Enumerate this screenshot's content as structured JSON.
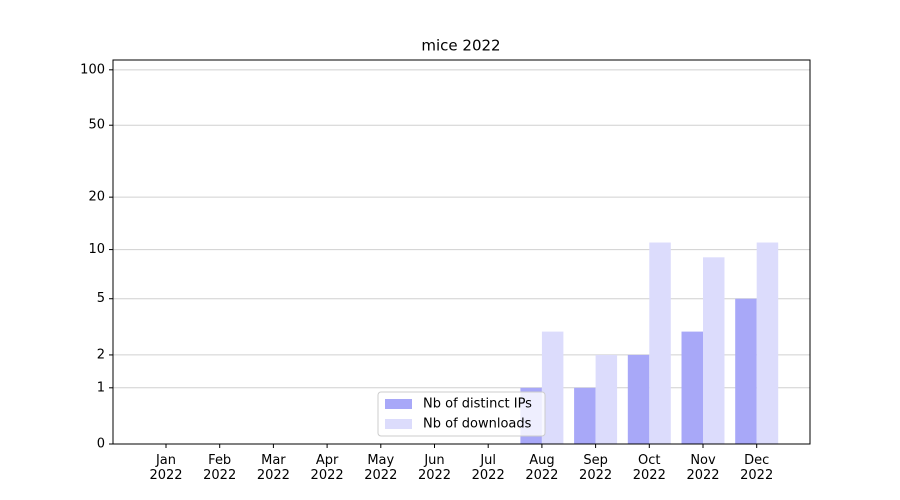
{
  "chart_data": {
    "type": "bar",
    "title": "mice 2022",
    "categories": [
      "Jan\n2022",
      "Feb\n2022",
      "Mar\n2022",
      "Apr\n2022",
      "May\n2022",
      "Jun\n2022",
      "Jul\n2022",
      "Aug\n2022",
      "Sep\n2022",
      "Oct\n2022",
      "Nov\n2022",
      "Dec\n2022"
    ],
    "series": [
      {
        "name": "Nb of distinct IPs",
        "color": "#a8a8f8",
        "values": [
          0,
          0,
          0,
          0,
          0,
          0,
          0,
          1,
          1,
          2,
          3,
          5
        ]
      },
      {
        "name": "Nb of downloads",
        "color": "#dcdcfc",
        "values": [
          0,
          0,
          0,
          0,
          0,
          0,
          0,
          3,
          2,
          11,
          9,
          11
        ]
      }
    ],
    "yscale": "log1p",
    "ylim": [
      0,
      113
    ],
    "yticks": [
      0,
      1,
      2,
      5,
      10,
      20,
      50,
      100
    ],
    "grid": true,
    "legend": "lower center"
  }
}
